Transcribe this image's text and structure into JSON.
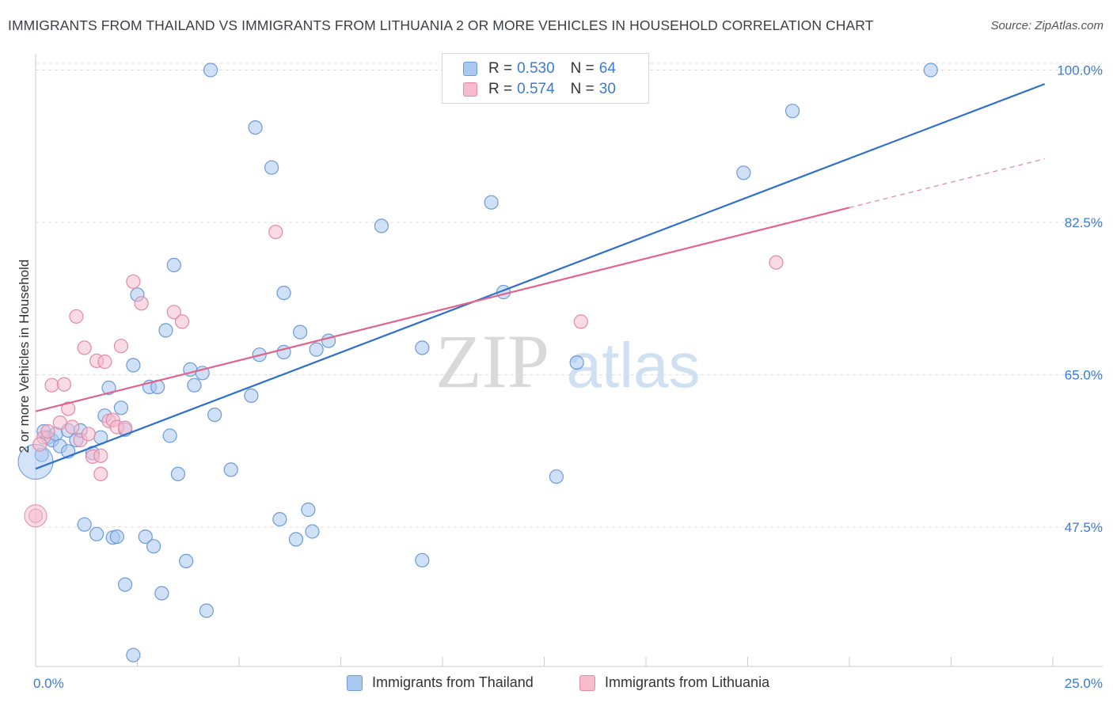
{
  "title": "IMMIGRANTS FROM THAILAND VS IMMIGRANTS FROM LITHUANIA 2 OR MORE VEHICLES IN HOUSEHOLD CORRELATION CHART",
  "source": "Source: ZipAtlas.com",
  "watermark": {
    "part1": "ZIP",
    "part2": "atlas"
  },
  "legend": {
    "rows": [
      {
        "r_label": "R = ",
        "r_value": "0.530",
        "n_label": "N = ",
        "n_value": "64"
      },
      {
        "r_label": "R = ",
        "r_value": "0.574",
        "n_label": "N = ",
        "n_value": "30"
      }
    ]
  },
  "bottom_legend": [
    "Immigrants from Thailand",
    "Immigrants from Lithuania"
  ],
  "colors": {
    "thailand_fill": "#a9c8f0",
    "thailand_stroke": "#6b9bd8",
    "thailand_line": "#2f6fcb",
    "lithuania_fill": "#f6bccd",
    "lithuania_stroke": "#e38aa6",
    "lithuania_line": "#e0648c",
    "tick_label": "#3a7bd5",
    "grid": "#dddddd"
  },
  "chart_data": {
    "type": "scatter",
    "xlabel": "",
    "ylabel": "2 or more Vehicles in Household",
    "xlim": [
      0,
      25
    ],
    "ylim": [
      31.5,
      101.5
    ],
    "x_tick_labels": [
      "0.0%",
      "25.0%"
    ],
    "y_ticks": [
      47.5,
      65.0,
      82.5,
      100.0
    ],
    "y_tick_labels": [
      "47.5%",
      "65.0%",
      "82.5%",
      "100.0%"
    ],
    "grid": "horizontal dashed",
    "legend_position": "top-center",
    "series": [
      {
        "name": "Immigrants from Thailand",
        "R": 0.53,
        "N": 64,
        "trend": {
          "x": [
            0.0,
            24.8
          ],
          "y": [
            54.2,
            98.4
          ]
        },
        "points": [
          [
            0.2,
            58.5
          ],
          [
            0.3,
            57.8
          ],
          [
            0.4,
            57.5
          ],
          [
            0.5,
            58.2
          ],
          [
            0.6,
            56.8
          ],
          [
            0.8,
            56.2
          ],
          [
            0.8,
            58.6
          ],
          [
            1.0,
            57.5
          ],
          [
            1.1,
            58.6
          ],
          [
            1.4,
            56.0
          ],
          [
            1.2,
            47.8
          ],
          [
            1.5,
            46.7
          ],
          [
            1.6,
            57.8
          ],
          [
            1.7,
            60.3
          ],
          [
            1.8,
            63.5
          ],
          [
            1.9,
            46.3
          ],
          [
            2.0,
            46.4
          ],
          [
            2.1,
            61.2
          ],
          [
            2.2,
            58.7
          ],
          [
            2.2,
            40.9
          ],
          [
            2.4,
            66.1
          ],
          [
            2.5,
            74.2
          ],
          [
            2.7,
            46.4
          ],
          [
            2.8,
            63.6
          ],
          [
            2.9,
            45.3
          ],
          [
            3.0,
            63.6
          ],
          [
            3.1,
            39.9
          ],
          [
            3.2,
            70.1
          ],
          [
            3.3,
            58.0
          ],
          [
            3.4,
            77.6
          ],
          [
            3.5,
            53.6
          ],
          [
            3.7,
            43.6
          ],
          [
            3.8,
            65.6
          ],
          [
            3.9,
            63.8
          ],
          [
            4.1,
            65.2
          ],
          [
            4.2,
            37.9
          ],
          [
            4.3,
            100.0
          ],
          [
            4.4,
            60.4
          ],
          [
            4.8,
            54.1
          ],
          [
            5.3,
            62.6
          ],
          [
            5.4,
            93.4
          ],
          [
            5.5,
            67.3
          ],
          [
            5.8,
            88.8
          ],
          [
            6.0,
            48.4
          ],
          [
            6.1,
            74.4
          ],
          [
            6.1,
            67.6
          ],
          [
            6.4,
            46.1
          ],
          [
            6.5,
            69.9
          ],
          [
            6.7,
            49.5
          ],
          [
            6.8,
            47.0
          ],
          [
            6.9,
            67.9
          ],
          [
            7.2,
            68.9
          ],
          [
            8.5,
            82.1
          ],
          [
            9.5,
            43.7
          ],
          [
            9.5,
            68.1
          ],
          [
            11.2,
            84.8
          ],
          [
            11.5,
            74.5
          ],
          [
            12.8,
            53.3
          ],
          [
            13.3,
            66.4
          ],
          [
            17.4,
            88.2
          ],
          [
            18.6,
            95.3
          ],
          [
            22.0,
            100.0
          ],
          [
            2.4,
            32.8
          ],
          [
            0.15,
            55.8
          ]
        ]
      },
      {
        "name": "Immigrants from Lithuania",
        "R": 0.574,
        "N": 30,
        "trend": {
          "x": [
            0.0,
            20.0
          ],
          "y": [
            60.8,
            84.2
          ]
        },
        "trend_ext": {
          "x": [
            20.0,
            24.8
          ],
          "y": [
            84.2,
            89.8
          ]
        },
        "points": [
          [
            0.0,
            48.8
          ],
          [
            0.2,
            57.8
          ],
          [
            0.3,
            58.5
          ],
          [
            0.4,
            63.8
          ],
          [
            0.6,
            59.5
          ],
          [
            0.7,
            63.9
          ],
          [
            0.8,
            61.1
          ],
          [
            0.9,
            59.0
          ],
          [
            1.0,
            71.7
          ],
          [
            1.1,
            57.5
          ],
          [
            1.2,
            68.1
          ],
          [
            1.3,
            58.2
          ],
          [
            1.4,
            55.6
          ],
          [
            1.5,
            66.6
          ],
          [
            1.6,
            53.6
          ],
          [
            1.6,
            55.7
          ],
          [
            1.7,
            66.5
          ],
          [
            1.8,
            59.7
          ],
          [
            1.9,
            59.8
          ],
          [
            2.0,
            59.0
          ],
          [
            2.1,
            68.3
          ],
          [
            2.2,
            58.9
          ],
          [
            2.4,
            75.7
          ],
          [
            2.6,
            73.2
          ],
          [
            3.4,
            72.2
          ],
          [
            3.6,
            71.1
          ],
          [
            5.9,
            81.4
          ],
          [
            13.4,
            71.1
          ],
          [
            18.2,
            77.9
          ],
          [
            0.1,
            57.0
          ]
        ]
      }
    ]
  }
}
